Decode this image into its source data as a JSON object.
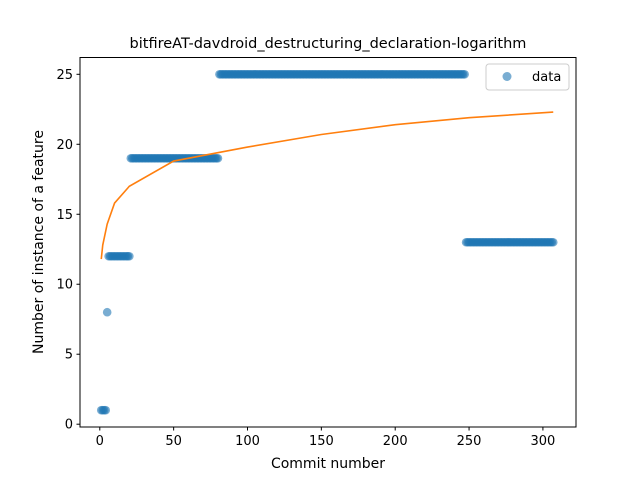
{
  "chart_data": {
    "type": "scatter",
    "title": "bitfireAT-davdroid_destructuring_declaration-logarithm",
    "xlabel": "Commit number",
    "ylabel": "Number of instance of a feature",
    "xlim": [
      -13.4,
      322.4
    ],
    "ylim": [
      -0.2,
      26.2
    ],
    "xticks": [
      0,
      50,
      100,
      150,
      200,
      250,
      300
    ],
    "yticks": [
      0,
      5,
      10,
      15,
      20,
      25
    ],
    "grid": false,
    "legend": {
      "placement": "top-right",
      "entries": [
        "data"
      ]
    },
    "colors": {
      "data": "#1f77b4",
      "fit": "#ff7f0e"
    },
    "series": [
      {
        "name": "data",
        "kind": "scatter",
        "segments": [
          {
            "x_start": 1,
            "x_end": 4,
            "y": 1
          },
          {
            "x_start": 5,
            "x_end": 5,
            "y": 8
          },
          {
            "x_start": 6,
            "x_end": 20,
            "y": 12
          },
          {
            "x_start": 21,
            "x_end": 80,
            "y": 19
          },
          {
            "x_start": 81,
            "x_end": 247,
            "y": 25
          },
          {
            "x_start": 248,
            "x_end": 307,
            "y": 13
          }
        ]
      },
      {
        "kind": "line",
        "fit": "logarithmic",
        "points": [
          [
            1,
            11.8
          ],
          [
            2,
            12.8
          ],
          [
            5,
            14.3
          ],
          [
            10,
            15.8
          ],
          [
            20,
            17.0
          ],
          [
            50,
            18.8
          ],
          [
            100,
            19.8
          ],
          [
            150,
            20.7
          ],
          [
            200,
            21.4
          ],
          [
            250,
            21.9
          ],
          [
            307,
            22.3
          ]
        ]
      }
    ]
  }
}
